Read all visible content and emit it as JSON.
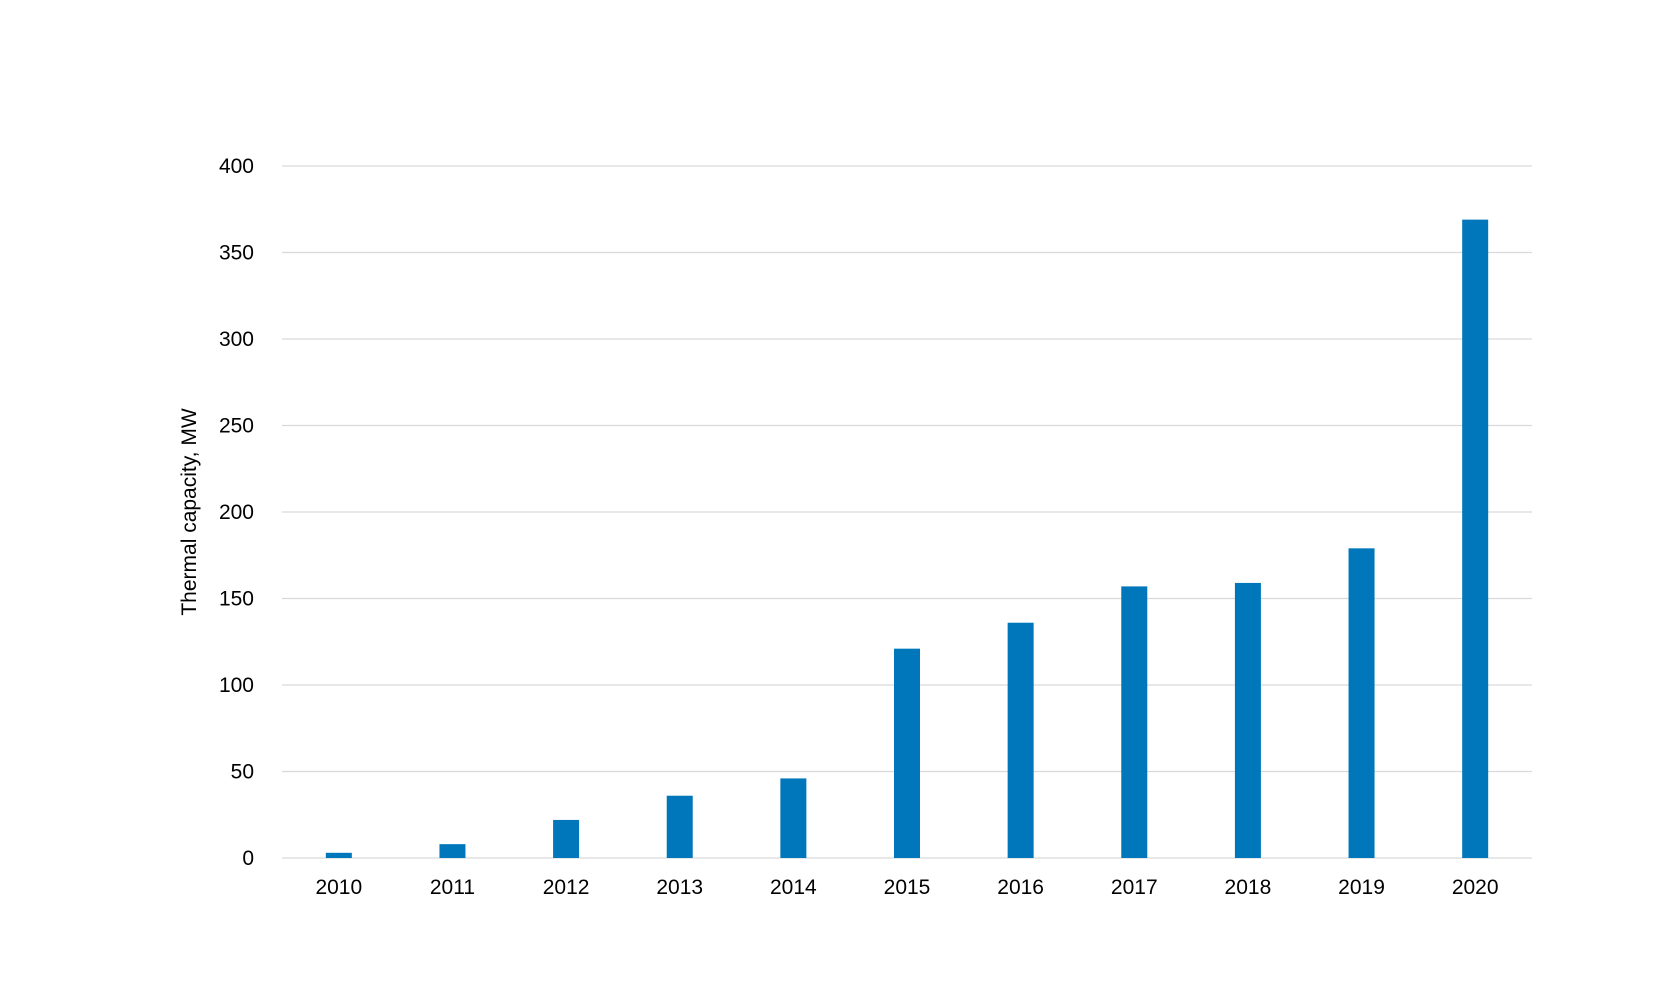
{
  "chart_data": {
    "type": "bar",
    "title": "",
    "xlabel": "",
    "ylabel": "Thermal capacity, MW",
    "categories": [
      "2010",
      "2011",
      "2012",
      "2013",
      "2014",
      "2015",
      "2016",
      "2017",
      "2018",
      "2019",
      "2020"
    ],
    "series": [
      {
        "values": [
          3,
          8,
          22,
          36,
          46,
          121,
          136,
          157,
          159,
          179,
          369
        ]
      }
    ],
    "ylim": [
      0,
      400
    ],
    "yticks": [
      0,
      50,
      100,
      150,
      200,
      250,
      300,
      350,
      400
    ],
    "grid": true,
    "legend": "none",
    "colors": {
      "bar": "#0077BB",
      "grid": "#D9D9D9"
    }
  }
}
